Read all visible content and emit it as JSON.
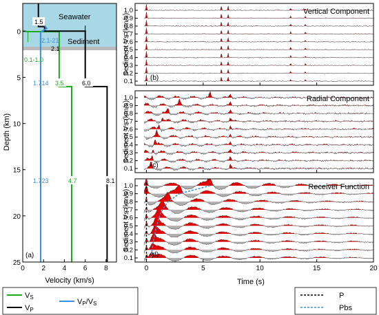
{
  "chart_data": [
    {
      "panel": "(a)",
      "type": "line",
      "xlabel": "Velocity (km/s)",
      "ylabel": "Depth (km)",
      "xlim": [
        0,
        9
      ],
      "ylim": [
        -3,
        25
      ],
      "xticks": [
        "0",
        "2",
        "4",
        "6",
        "8"
      ],
      "yticks": [
        "0",
        "5",
        "10",
        "15",
        "20",
        "25"
      ],
      "region_labels": {
        "water": "Seawater",
        "sediment": "Sediment"
      },
      "annotations": [
        "1.5",
        "2.1-21",
        "2.1",
        "0.1-1.0",
        "1.714",
        "3.5",
        "6.0",
        "1.723",
        "4.7",
        "8.1"
      ],
      "series": [
        {
          "name": "Vs",
          "color": "#1aaa1a",
          "points": [
            [
              0,
              0
            ],
            [
              0.5,
              0.05
            ],
            [
              3.5,
              0.05
            ],
            [
              3.5,
              6.0
            ],
            [
              4.7,
              6.0
            ],
            [
              4.7,
              25
            ]
          ]
        },
        {
          "name": "Vp",
          "color": "#000000",
          "points": [
            [
              1.5,
              -3
            ],
            [
              1.5,
              -0.5
            ],
            [
              2.1,
              -0.5
            ],
            [
              2.1,
              0
            ],
            [
              6.0,
              0
            ],
            [
              6.0,
              6.0
            ],
            [
              8.1,
              6.0
            ],
            [
              8.1,
              25
            ]
          ]
        },
        {
          "name": "Vp/Vs",
          "color": "#3b8ee0",
          "points": [
            [
              2.1,
              -0.6
            ],
            [
              2.3,
              -0.3
            ],
            [
              1.714,
              0.1
            ],
            [
              1.714,
              6.0
            ],
            [
              1.723,
              6.0
            ],
            [
              1.723,
              25
            ]
          ]
        }
      ]
    },
    {
      "panel": "(b)",
      "title": "Vertical Component",
      "ylabel": "Sediment Vs (km/s)",
      "xlim": [
        -1,
        20
      ],
      "yticks": [
        "0.1",
        "0.2",
        "0.3",
        "0.4",
        "0.5",
        "0.6",
        "0.7",
        "0.8",
        "0.9",
        "1.0"
      ],
      "xticks": [
        "0",
        "5",
        "10",
        "15",
        "20"
      ]
    },
    {
      "panel": "(c)",
      "title": "Radial Component",
      "ylabel": "Sediment Vs (km/s)",
      "xlim": [
        -1,
        20
      ],
      "yticks": [
        "0.1",
        "0.2",
        "0.3",
        "0.4",
        "0.5",
        "0.6",
        "0.7",
        "0.8",
        "0.9",
        "1.0"
      ],
      "xticks": [
        "0",
        "5",
        "10",
        "15",
        "20"
      ]
    },
    {
      "panel": "(d)",
      "title": "Receiver Function",
      "ylabel": "Sediment Vs (km/s)",
      "xlabel": "Time (s)",
      "xlim": [
        -1,
        20
      ],
      "yticks": [
        "0.1",
        "0.2",
        "0.3",
        "0.4",
        "0.5",
        "0.6",
        "0.7",
        "0.8",
        "0.9",
        "1.0"
      ],
      "xticks": [
        "0",
        "5",
        "10",
        "15",
        "20"
      ],
      "pbs_times": [
        0.4,
        0.5,
        0.6,
        0.75,
        0.9,
        1.1,
        1.4,
        1.9,
        2.9,
        5.6
      ]
    }
  ],
  "legend_left": {
    "vs": "V",
    "vs_sub": "S",
    "vp": "V",
    "vp_sub": "P",
    "ratio": "V",
    "ratio_sub1": "P",
    "ratio_mid": "/V",
    "ratio_sub2": "S"
  },
  "legend_right": {
    "p": "P",
    "pbs": "Pbs"
  }
}
